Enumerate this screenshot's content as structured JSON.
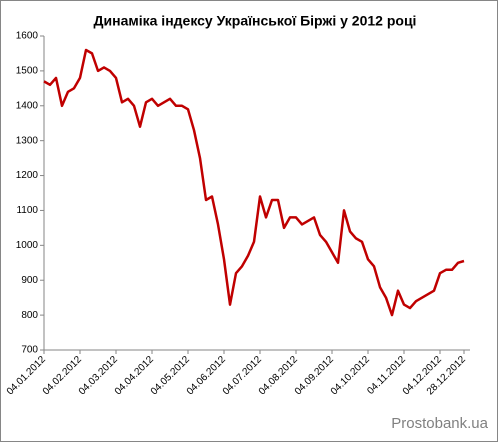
{
  "chart_data": {
    "type": "line",
    "title": "Динаміка індексу Української Біржі у 2012  році",
    "watermark": "Prostobank.ua",
    "categories": [
      "04.01.2012",
      null,
      null,
      null,
      null,
      null,
      "04.02.2012",
      null,
      null,
      null,
      null,
      null,
      "04.03.2012",
      null,
      null,
      null,
      null,
      null,
      "04.04.2012",
      null,
      null,
      null,
      null,
      null,
      "04.05.2012",
      null,
      null,
      null,
      null,
      null,
      "04.06.2012",
      null,
      null,
      null,
      null,
      null,
      "04.07.2012",
      null,
      null,
      null,
      null,
      null,
      "04.08.2012",
      null,
      null,
      null,
      null,
      null,
      "04.09.2012",
      null,
      null,
      null,
      null,
      null,
      "04.10.2012",
      null,
      null,
      null,
      null,
      null,
      "04.11.2012",
      null,
      null,
      null,
      null,
      null,
      "04.12.2012",
      null,
      null,
      null,
      "28.12.2012"
    ],
    "values": [
      1470,
      1460,
      1480,
      1400,
      1440,
      1450,
      1480,
      1560,
      1550,
      1500,
      1510,
      1500,
      1480,
      1410,
      1420,
      1400,
      1340,
      1410,
      1420,
      1400,
      1410,
      1420,
      1400,
      1400,
      1390,
      1330,
      1250,
      1130,
      1140,
      1060,
      960,
      830,
      920,
      940,
      970,
      1010,
      1140,
      1080,
      1130,
      1130,
      1050,
      1080,
      1080,
      1060,
      1070,
      1080,
      1030,
      1010,
      980,
      950,
      1100,
      1040,
      1020,
      1010,
      960,
      940,
      880,
      850,
      800,
      870,
      830,
      820,
      840,
      850,
      860,
      870,
      920,
      930,
      930,
      950,
      955
    ],
    "color": "#c00000",
    "ylim": [
      700,
      1600
    ],
    "yticks": [
      700,
      800,
      900,
      1000,
      1100,
      1200,
      1300,
      1400,
      1500,
      1600
    ],
    "grid": false
  }
}
